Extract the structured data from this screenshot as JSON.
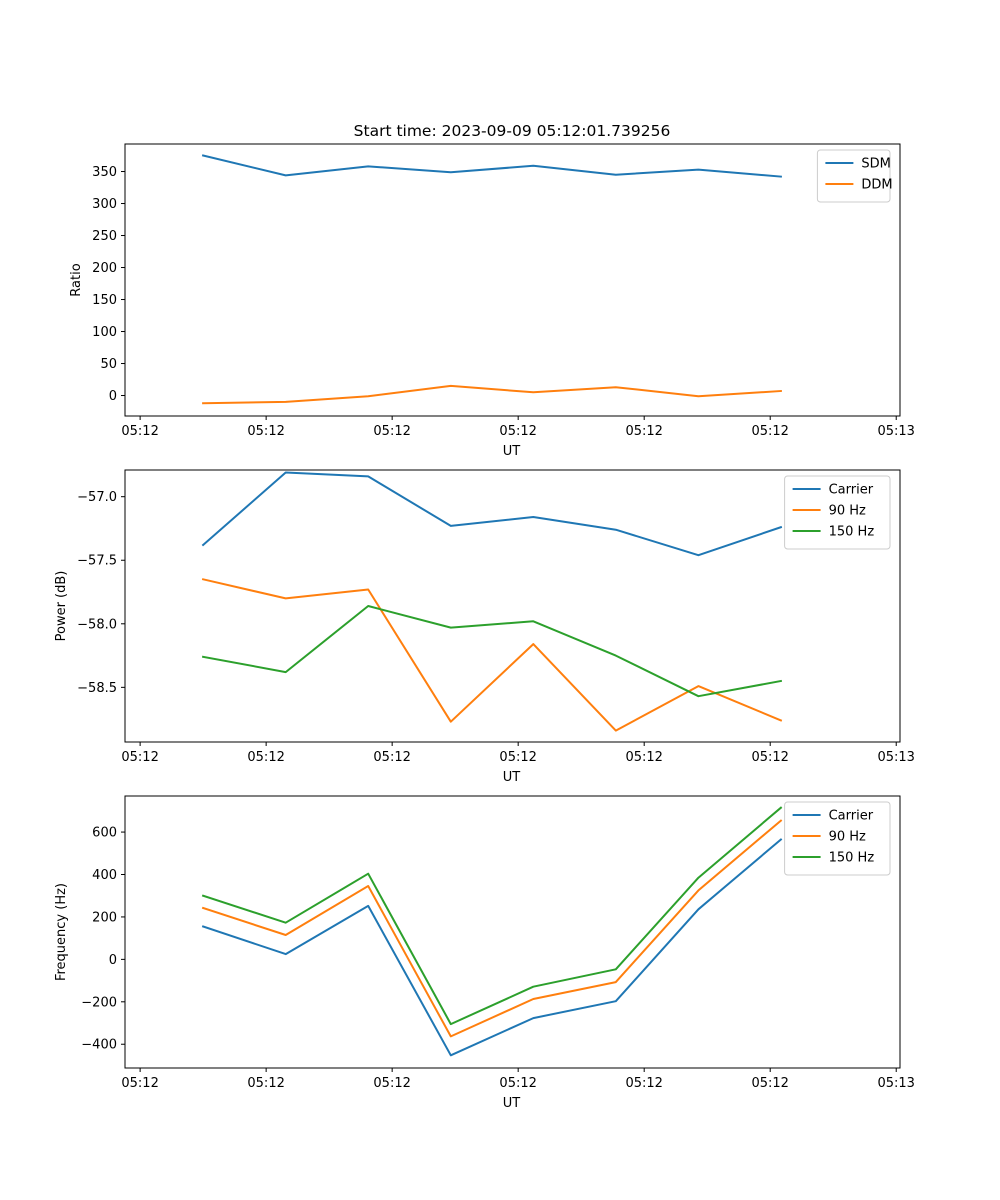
{
  "title": "Start time: 2023-09-09 05:12:01.739256",
  "colors": {
    "blue": "#1f77b4",
    "orange": "#ff7f0e",
    "green": "#2ca02c"
  },
  "chart_data": [
    {
      "type": "line",
      "xlabel": "UT",
      "ylabel": "Ratio",
      "x_tick_labels": [
        "05:12",
        "05:12",
        "05:12",
        "05:12",
        "05:12",
        "05:12",
        "05:13"
      ],
      "x_ticks": [
        0,
        1,
        2,
        3,
        4,
        5,
        6
      ],
      "xlim": [
        -0.12,
        6.03
      ],
      "y_ticks": [
        0,
        50,
        100,
        150,
        200,
        250,
        300,
        350
      ],
      "y_tick_labels": [
        "0",
        "50",
        "100",
        "150",
        "200",
        "250",
        "300",
        "350"
      ],
      "ylim": [
        -32,
        393
      ],
      "legend": "top-right",
      "x": [
        0.5,
        1.155,
        1.81,
        2.465,
        3.12,
        3.775,
        4.43,
        5.085
      ],
      "series": [
        {
          "name": "SDM",
          "color": "#1f77b4",
          "values": [
            375,
            344,
            358,
            349,
            359,
            345,
            353,
            342
          ]
        },
        {
          "name": "DDM",
          "color": "#ff7f0e",
          "values": [
            -12,
            -10,
            -1,
            15,
            5,
            13,
            -1,
            7
          ]
        }
      ]
    },
    {
      "type": "line",
      "xlabel": "UT",
      "ylabel": "Power (dB)",
      "x_tick_labels": [
        "05:12",
        "05:12",
        "05:12",
        "05:12",
        "05:12",
        "05:12",
        "05:13"
      ],
      "x_ticks": [
        0,
        1,
        2,
        3,
        4,
        5,
        6
      ],
      "xlim": [
        -0.12,
        6.03
      ],
      "y_ticks": [
        -57.0,
        -57.5,
        -58.0,
        -58.5
      ],
      "y_tick_labels": [
        "−57.0",
        "−57.5",
        "−58.0",
        "−58.5"
      ],
      "ylim": [
        -58.93,
        -56.79
      ],
      "legend": "top-right",
      "x": [
        0.5,
        1.155,
        1.81,
        2.465,
        3.12,
        3.775,
        4.43,
        5.085
      ],
      "series": [
        {
          "name": "Carrier",
          "color": "#1f77b4",
          "values": [
            -57.38,
            -56.81,
            -56.84,
            -57.23,
            -57.16,
            -57.26,
            -57.46,
            -57.24
          ]
        },
        {
          "name": "90 Hz",
          "color": "#ff7f0e",
          "values": [
            -57.65,
            -57.8,
            -57.73,
            -58.77,
            -58.16,
            -58.84,
            -58.49,
            -58.76
          ]
        },
        {
          "name": "150 Hz",
          "color": "#2ca02c",
          "values": [
            -58.26,
            -58.38,
            -57.86,
            -58.03,
            -57.98,
            -58.25,
            -58.57,
            -58.45
          ]
        }
      ]
    },
    {
      "type": "line",
      "xlabel": "UT",
      "ylabel": "Frequency (Hz)",
      "x_tick_labels": [
        "05:12",
        "05:12",
        "05:12",
        "05:12",
        "05:12",
        "05:12",
        "05:13"
      ],
      "x_ticks": [
        0,
        1,
        2,
        3,
        4,
        5,
        6
      ],
      "xlim": [
        -0.12,
        6.03
      ],
      "y_ticks": [
        -400,
        -200,
        0,
        200,
        400,
        600
      ],
      "y_tick_labels": [
        "−400",
        "−200",
        "0",
        "200",
        "400",
        "600"
      ],
      "ylim": [
        -512,
        770
      ],
      "legend": "top-right",
      "x": [
        0.5,
        1.155,
        1.81,
        2.465,
        3.12,
        3.775,
        4.43,
        5.085
      ],
      "series": [
        {
          "name": "Carrier",
          "color": "#1f77b4",
          "values": [
            155,
            25,
            252,
            -452,
            -277,
            -197,
            236,
            565
          ]
        },
        {
          "name": "90 Hz",
          "color": "#ff7f0e",
          "values": [
            242,
            115,
            346,
            -363,
            -187,
            -107,
            325,
            654
          ]
        },
        {
          "name": "150 Hz",
          "color": "#2ca02c",
          "values": [
            300,
            173,
            404,
            -305,
            -129,
            -47,
            385,
            715
          ]
        }
      ]
    }
  ]
}
